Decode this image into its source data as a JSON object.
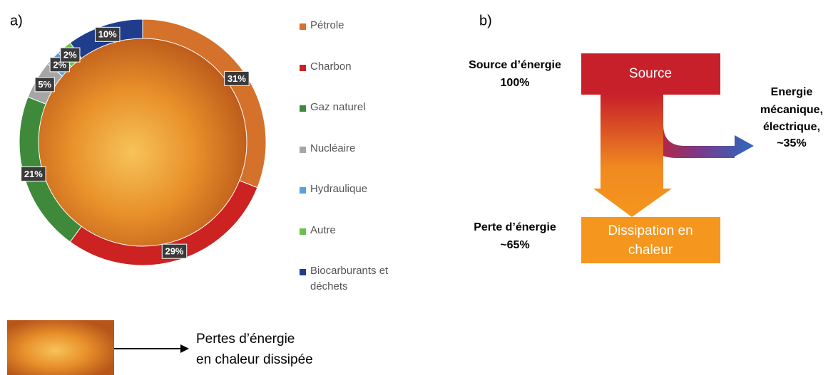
{
  "chart_data": {
    "type": "donut",
    "panel_label": "a)",
    "categories": [
      "Pétrole",
      "Charbon",
      "Gaz naturel",
      "Nucléaire",
      "Hydraulique",
      "Autre",
      "Biocarburants et déchets"
    ],
    "values": [
      31,
      29,
      21,
      5,
      2,
      2,
      10
    ],
    "value_labels": [
      "31%",
      "29%",
      "21%",
      "5%",
      "2%",
      "2%",
      "10%"
    ],
    "colors": [
      "#d4712a",
      "#cc2222",
      "#3e8a3a",
      "#a6a6a6",
      "#5aa0dc",
      "#6cbf4a",
      "#1f3d8a"
    ]
  },
  "diagram": {
    "panel_label": "b)",
    "source_box": "Source",
    "source_label": [
      "Source d’énergie",
      "100%"
    ],
    "output_label": [
      "Energie",
      "mécanique,",
      "électrique,",
      "~35%"
    ],
    "loss_label": [
      "Perte d’énergie",
      "~65%"
    ],
    "dissipation_box": [
      "Dissipation en",
      "chaleur"
    ]
  },
  "caption": [
    "Pertes d’énergie",
    "en chaleur dissipée"
  ]
}
